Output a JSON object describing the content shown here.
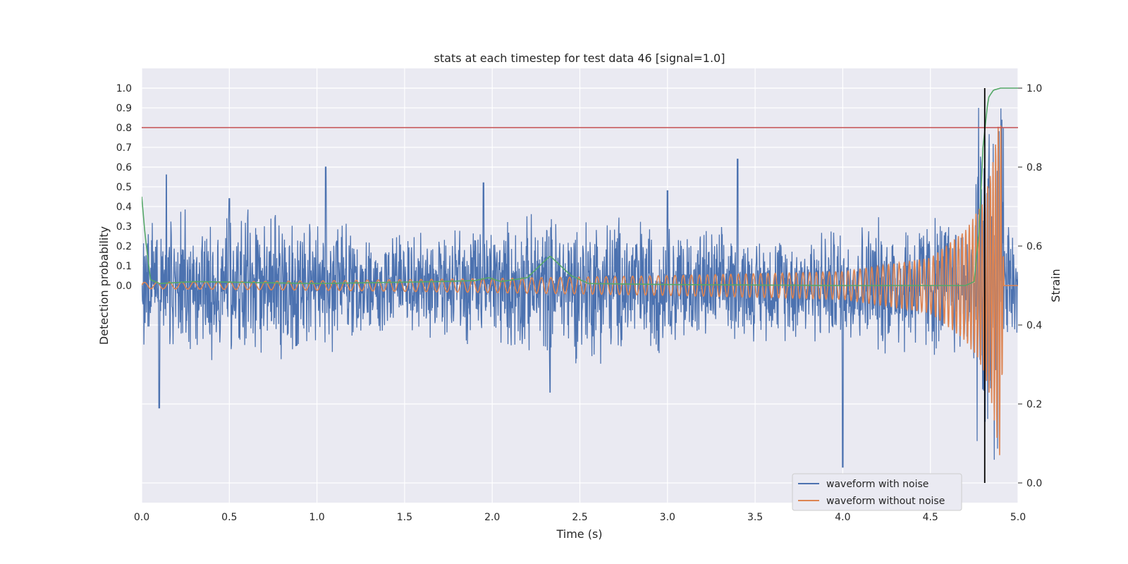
{
  "chart_data": {
    "type": "line",
    "title": "stats at each timestep for test data 46 [signal=1.0]",
    "xlabel": "Time (s)",
    "ylabel_left": "Detection probability",
    "ylabel_right": "Strain",
    "xlim": [
      0.0,
      5.0
    ],
    "xticks": [
      "0.0",
      "0.5",
      "1.0",
      "1.5",
      "2.0",
      "2.5",
      "3.0",
      "3.5",
      "4.0",
      "4.5",
      "5.0"
    ],
    "ylim_left": [
      -1.1,
      1.1
    ],
    "yticks_left": [
      "0.0",
      "0.1",
      "0.2",
      "0.3",
      "0.4",
      "0.5",
      "0.6",
      "0.7",
      "0.8",
      "0.9",
      "1.0"
    ],
    "ylim_right": [
      -0.05,
      1.05
    ],
    "yticks_right": [
      "0.0",
      "0.2",
      "0.4",
      "0.6",
      "0.8",
      "1.0"
    ],
    "grid": true,
    "legend_position": "bottom-right",
    "threshold": 0.8,
    "detection_time": 4.81,
    "colors": {
      "noisy": "#4c72b0",
      "clean": "#dd8452",
      "probability": "#55a868",
      "threshold": "#c44e52",
      "marker": "#000000",
      "background": "#eaeaf2",
      "grid": "#ffffff"
    },
    "series": [
      {
        "name": "waveform with noise",
        "role": "noisy",
        "axis": "right",
        "x": [
          0.0,
          0.1,
          0.14,
          0.2,
          0.5,
          1.0,
          1.05,
          1.5,
          1.95,
          2.0,
          2.33,
          2.5,
          3.0,
          3.4,
          3.5,
          4.0,
          4.5,
          4.8,
          4.87,
          4.9,
          4.92,
          5.0
        ],
        "y": [
          0.5,
          0.19,
          0.78,
          0.5,
          0.72,
          0.5,
          0.8,
          0.5,
          0.76,
          0.5,
          0.23,
          0.5,
          0.74,
          0.82,
          0.5,
          0.04,
          0.5,
          0.25,
          0.98,
          0.0,
          0.5,
          0.5
        ]
      },
      {
        "name": "waveform without noise",
        "role": "clean",
        "axis": "right",
        "x": [
          0.0,
          1.0,
          2.0,
          3.0,
          4.0,
          4.5,
          4.7,
          4.8,
          4.85,
          4.9,
          4.92,
          5.0
        ],
        "y": [
          0.5,
          0.51,
          0.52,
          0.53,
          0.54,
          0.57,
          0.64,
          0.7,
          0.8,
          0.96,
          0.5,
          0.5
        ],
        "peak_envelope": [
          0.008,
          0.012,
          0.018,
          0.025,
          0.035,
          0.07,
          0.14,
          0.21,
          0.3,
          0.45,
          0.0,
          0.0
        ]
      },
      {
        "axis": "left",
        "role": "probability",
        "x": [
          0.0,
          0.02,
          0.05,
          0.1,
          0.3,
          1.0,
          1.7,
          1.9,
          1.98,
          2.05,
          2.2,
          2.33,
          2.45,
          2.55,
          3.0,
          4.0,
          4.7,
          4.75,
          4.78,
          4.8,
          4.83,
          4.86,
          4.9,
          5.0
        ],
        "y": [
          0.45,
          0.25,
          0.03,
          0.01,
          0.02,
          0.01,
          0.02,
          0.025,
          0.04,
          0.02,
          0.04,
          0.15,
          0.05,
          0.01,
          0.005,
          0.0,
          0.0,
          0.02,
          0.3,
          0.7,
          0.95,
          0.99,
          1.0,
          1.0
        ]
      }
    ]
  }
}
